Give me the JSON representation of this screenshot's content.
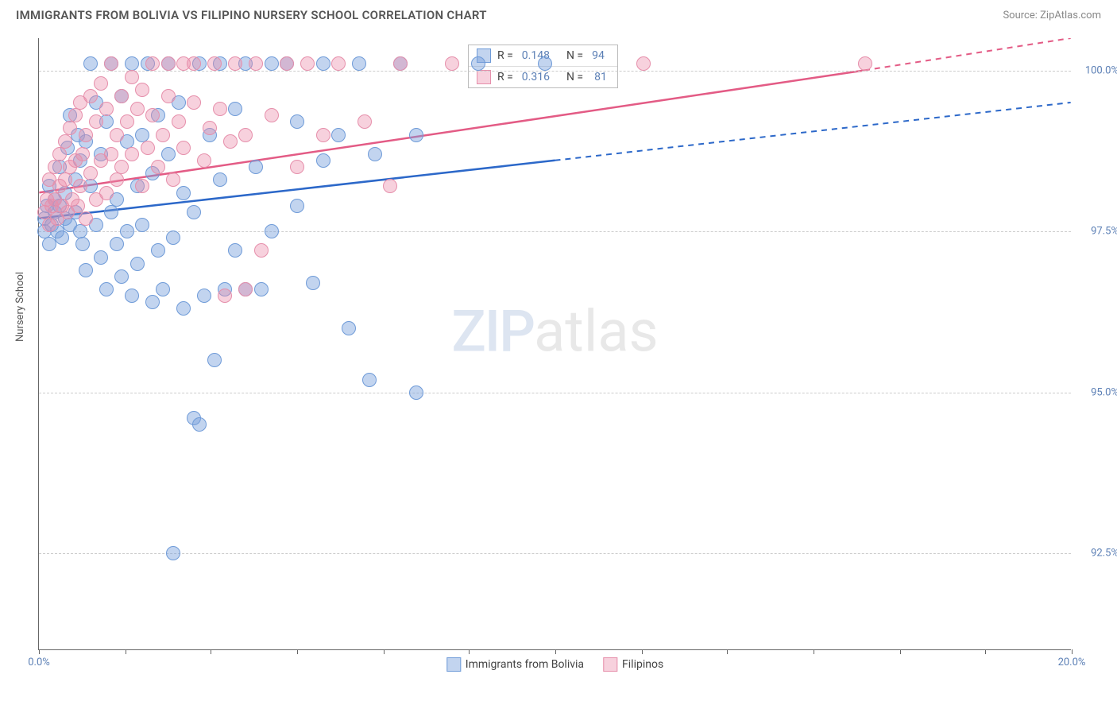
{
  "title": "IMMIGRANTS FROM BOLIVIA VS FILIPINO NURSERY SCHOOL CORRELATION CHART",
  "source_label": "Source:",
  "source_name": "ZipAtlas.com",
  "ylabel": "Nursery School",
  "watermark_a": "ZIP",
  "watermark_b": "atlas",
  "xlim": [
    0,
    20
  ],
  "ylim": [
    91,
    100.5
  ],
  "yticks": [
    {
      "v": 100.0,
      "label": "100.0%"
    },
    {
      "v": 97.5,
      "label": "97.5%"
    },
    {
      "v": 95.0,
      "label": "95.0%"
    },
    {
      "v": 92.5,
      "label": "92.5%"
    }
  ],
  "xticks_labeled": [
    {
      "v": 0,
      "label": "0.0%"
    },
    {
      "v": 20,
      "label": "20.0%"
    }
  ],
  "xtick_marks": [
    0,
    1.67,
    3.33,
    5,
    6.67,
    8.33,
    10,
    11.67,
    13.33,
    15,
    16.67,
    18.33,
    20
  ],
  "series": {
    "bolivia": {
      "name": "Immigrants from Bolivia",
      "R": "0.148",
      "N": "94",
      "fill": "rgba(120,160,220,0.45)",
      "stroke": "#6f9bd8",
      "line_color": "#2c68c9",
      "trend": {
        "x1": 0,
        "y1": 97.7,
        "x2_solid": 10,
        "y2_solid": 98.6,
        "x2": 20,
        "y2": 99.5
      },
      "points": [
        [
          0.1,
          97.5
        ],
        [
          0.1,
          97.7
        ],
        [
          0.15,
          97.9
        ],
        [
          0.2,
          97.3
        ],
        [
          0.2,
          98.2
        ],
        [
          0.25,
          97.6
        ],
        [
          0.3,
          97.8
        ],
        [
          0.3,
          98.0
        ],
        [
          0.35,
          97.5
        ],
        [
          0.4,
          98.5
        ],
        [
          0.4,
          97.9
        ],
        [
          0.45,
          97.4
        ],
        [
          0.5,
          98.1
        ],
        [
          0.5,
          97.7
        ],
        [
          0.55,
          98.8
        ],
        [
          0.6,
          97.6
        ],
        [
          0.6,
          99.3
        ],
        [
          0.7,
          98.3
        ],
        [
          0.7,
          97.8
        ],
        [
          0.75,
          99.0
        ],
        [
          0.8,
          97.5
        ],
        [
          0.8,
          98.6
        ],
        [
          0.85,
          97.3
        ],
        [
          0.9,
          98.9
        ],
        [
          0.9,
          96.9
        ],
        [
          1.0,
          100.1
        ],
        [
          1.0,
          98.2
        ],
        [
          1.1,
          97.6
        ],
        [
          1.1,
          99.5
        ],
        [
          1.2,
          97.1
        ],
        [
          1.2,
          98.7
        ],
        [
          1.3,
          96.6
        ],
        [
          1.3,
          99.2
        ],
        [
          1.4,
          97.8
        ],
        [
          1.4,
          100.1
        ],
        [
          1.5,
          98.0
        ],
        [
          1.5,
          97.3
        ],
        [
          1.6,
          96.8
        ],
        [
          1.6,
          99.6
        ],
        [
          1.7,
          97.5
        ],
        [
          1.7,
          98.9
        ],
        [
          1.8,
          96.5
        ],
        [
          1.8,
          100.1
        ],
        [
          1.9,
          98.2
        ],
        [
          1.9,
          97.0
        ],
        [
          2.0,
          99.0
        ],
        [
          2.0,
          97.6
        ],
        [
          2.1,
          100.1
        ],
        [
          2.2,
          96.4
        ],
        [
          2.2,
          98.4
        ],
        [
          2.3,
          99.3
        ],
        [
          2.3,
          97.2
        ],
        [
          2.4,
          96.6
        ],
        [
          2.5,
          98.7
        ],
        [
          2.5,
          100.1
        ],
        [
          2.6,
          97.4
        ],
        [
          2.6,
          92.5
        ],
        [
          2.7,
          99.5
        ],
        [
          2.8,
          96.3
        ],
        [
          2.8,
          98.1
        ],
        [
          3.0,
          94.6
        ],
        [
          3.0,
          97.8
        ],
        [
          3.1,
          100.1
        ],
        [
          3.1,
          94.5
        ],
        [
          3.2,
          96.5
        ],
        [
          3.3,
          99.0
        ],
        [
          3.4,
          95.5
        ],
        [
          3.5,
          98.3
        ],
        [
          3.5,
          100.1
        ],
        [
          3.6,
          96.6
        ],
        [
          3.8,
          97.2
        ],
        [
          3.8,
          99.4
        ],
        [
          4.0,
          100.1
        ],
        [
          4.0,
          96.6
        ],
        [
          4.2,
          98.5
        ],
        [
          4.3,
          96.6
        ],
        [
          4.5,
          100.1
        ],
        [
          4.5,
          97.5
        ],
        [
          4.8,
          100.1
        ],
        [
          5.0,
          97.9
        ],
        [
          5.0,
          99.2
        ],
        [
          5.3,
          96.7
        ],
        [
          5.5,
          98.6
        ],
        [
          5.5,
          100.1
        ],
        [
          5.8,
          99.0
        ],
        [
          6.0,
          96.0
        ],
        [
          6.2,
          100.1
        ],
        [
          6.4,
          95.2
        ],
        [
          6.5,
          98.7
        ],
        [
          7.0,
          100.1
        ],
        [
          7.3,
          99.0
        ],
        [
          7.3,
          95.0
        ],
        [
          8.5,
          100.1
        ],
        [
          9.8,
          100.1
        ]
      ]
    },
    "filipino": {
      "name": "Filipinos",
      "R": "0.316",
      "N": "81",
      "fill": "rgba(235,140,170,0.40)",
      "stroke": "#e68fab",
      "line_color": "#e35b85",
      "trend": {
        "x1": 0,
        "y1": 98.1,
        "x2_solid": 16,
        "y2_solid": 100.0,
        "x2": 20,
        "y2": 100.5
      },
      "points": [
        [
          0.1,
          97.8
        ],
        [
          0.15,
          98.0
        ],
        [
          0.2,
          97.6
        ],
        [
          0.2,
          98.3
        ],
        [
          0.25,
          97.9
        ],
        [
          0.3,
          98.5
        ],
        [
          0.3,
          98.0
        ],
        [
          0.35,
          97.7
        ],
        [
          0.4,
          98.7
        ],
        [
          0.4,
          98.2
        ],
        [
          0.45,
          97.9
        ],
        [
          0.5,
          98.9
        ],
        [
          0.5,
          98.3
        ],
        [
          0.55,
          97.8
        ],
        [
          0.6,
          99.1
        ],
        [
          0.6,
          98.5
        ],
        [
          0.65,
          98.0
        ],
        [
          0.7,
          99.3
        ],
        [
          0.7,
          98.6
        ],
        [
          0.75,
          97.9
        ],
        [
          0.8,
          99.5
        ],
        [
          0.8,
          98.2
        ],
        [
          0.85,
          98.7
        ],
        [
          0.9,
          97.7
        ],
        [
          0.9,
          99.0
        ],
        [
          1.0,
          98.4
        ],
        [
          1.0,
          99.6
        ],
        [
          1.1,
          98.0
        ],
        [
          1.1,
          99.2
        ],
        [
          1.2,
          98.6
        ],
        [
          1.2,
          99.8
        ],
        [
          1.3,
          98.1
        ],
        [
          1.3,
          99.4
        ],
        [
          1.4,
          98.7
        ],
        [
          1.4,
          100.1
        ],
        [
          1.5,
          98.3
        ],
        [
          1.5,
          99.0
        ],
        [
          1.6,
          99.6
        ],
        [
          1.6,
          98.5
        ],
        [
          1.7,
          99.2
        ],
        [
          1.8,
          99.9
        ],
        [
          1.8,
          98.7
        ],
        [
          1.9,
          99.4
        ],
        [
          2.0,
          98.2
        ],
        [
          2.0,
          99.7
        ],
        [
          2.1,
          98.8
        ],
        [
          2.2,
          99.3
        ],
        [
          2.2,
          100.1
        ],
        [
          2.3,
          98.5
        ],
        [
          2.4,
          99.0
        ],
        [
          2.5,
          99.6
        ],
        [
          2.5,
          100.1
        ],
        [
          2.6,
          98.3
        ],
        [
          2.7,
          99.2
        ],
        [
          2.8,
          100.1
        ],
        [
          2.8,
          98.8
        ],
        [
          3.0,
          99.5
        ],
        [
          3.0,
          100.1
        ],
        [
          3.2,
          98.6
        ],
        [
          3.3,
          99.1
        ],
        [
          3.4,
          100.1
        ],
        [
          3.5,
          99.4
        ],
        [
          3.6,
          96.5
        ],
        [
          3.7,
          98.9
        ],
        [
          3.8,
          100.1
        ],
        [
          4.0,
          99.0
        ],
        [
          4.0,
          96.6
        ],
        [
          4.2,
          100.1
        ],
        [
          4.3,
          97.2
        ],
        [
          4.5,
          99.3
        ],
        [
          4.8,
          100.1
        ],
        [
          5.0,
          98.5
        ],
        [
          5.2,
          100.1
        ],
        [
          5.5,
          99.0
        ],
        [
          5.8,
          100.1
        ],
        [
          6.3,
          99.2
        ],
        [
          6.8,
          98.2
        ],
        [
          7.0,
          100.1
        ],
        [
          8.0,
          100.1
        ],
        [
          11.7,
          100.1
        ],
        [
          16.0,
          100.1
        ]
      ]
    }
  },
  "legend_labels": {
    "R": "R =",
    "N": "N ="
  }
}
